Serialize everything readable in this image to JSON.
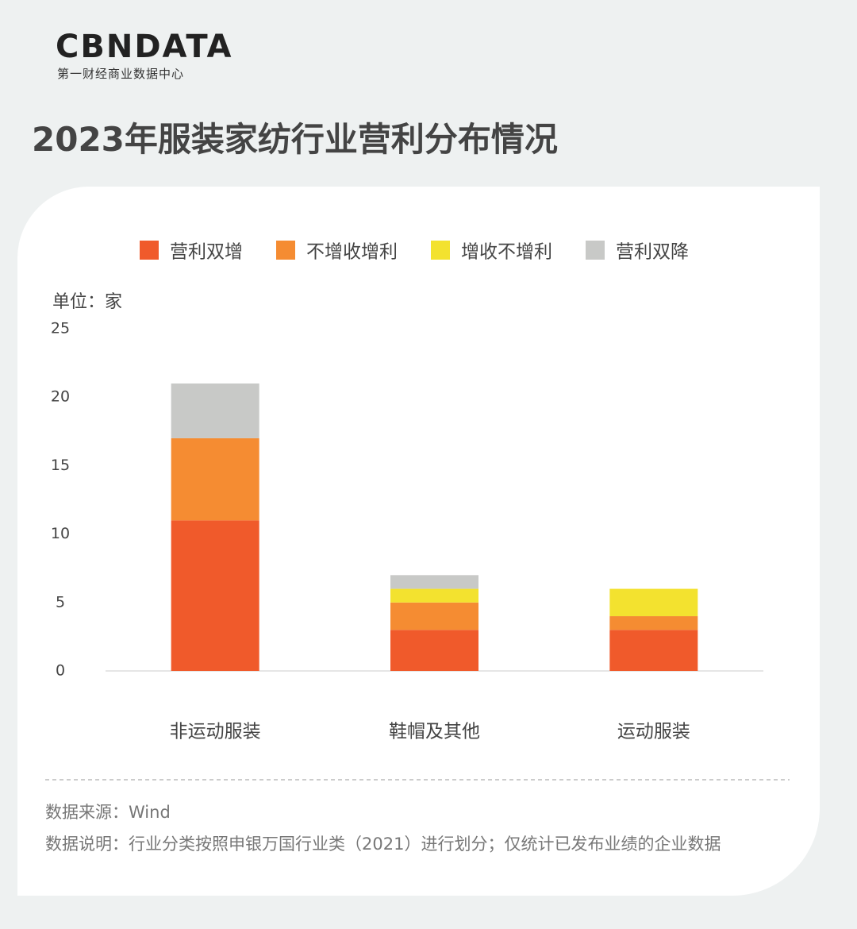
{
  "header": {
    "logo": "CBNDATA",
    "subtitle": "第一财经商业数据中心"
  },
  "chart_data": {
    "type": "stacked_bar",
    "title": "2023年服装家纺行业营利分布情况",
    "unit_label": "单位：家",
    "categories": [
      "非运动服装",
      "鞋帽及其他",
      "运动服装"
    ],
    "series": [
      {
        "name": "营利双增",
        "color": "#f05a2b",
        "values": [
          11,
          3,
          3
        ]
      },
      {
        "name": "不增收增利",
        "color": "#f58c32",
        "values": [
          6,
          2,
          1
        ]
      },
      {
        "name": "增收不增利",
        "color": "#f3e22f",
        "values": [
          0,
          1,
          2
        ]
      },
      {
        "name": "营利双降",
        "color": "#c8c9c7",
        "values": [
          4,
          1,
          0
        ]
      }
    ],
    "ylim": [
      0,
      25
    ],
    "yticks": [
      0,
      5,
      10,
      15,
      20,
      25
    ],
    "legend": "top"
  },
  "footer": {
    "source": "数据来源：Wind",
    "note": "数据说明：行业分类按照申银万国行业类（2021）进行划分；仅统计已发布业绩的企业数据"
  }
}
